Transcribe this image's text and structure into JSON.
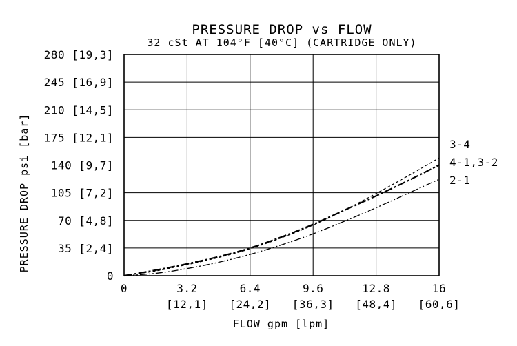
{
  "chart_data": {
    "type": "line",
    "title": "PRESSURE DROP vs FLOW",
    "subtitle": "32 cSt AT 104°F [40°C] (CARTRIDGE ONLY)",
    "xlabel": "FLOW gpm [lpm]",
    "ylabel": "PRESSURE DROP psi [bar]",
    "xlim": [
      0,
      16
    ],
    "ylim": [
      0,
      280
    ],
    "grid": true,
    "x_ticks": [
      {
        "value": 0,
        "label": "0",
        "sub": ""
      },
      {
        "value": 3.2,
        "label": "3.2",
        "sub": "[12,1]"
      },
      {
        "value": 6.4,
        "label": "6.4",
        "sub": "[24,2]"
      },
      {
        "value": 9.6,
        "label": "9.6",
        "sub": "[36,3]"
      },
      {
        "value": 12.8,
        "label": "12.8",
        "sub": "[48,4]"
      },
      {
        "value": 16,
        "label": "16",
        "sub": "[60,6]"
      }
    ],
    "y_ticks": [
      {
        "value": 0,
        "label": "0"
      },
      {
        "value": 35,
        "label": "35 [2,4]"
      },
      {
        "value": 70,
        "label": "70 [4,8]"
      },
      {
        "value": 105,
        "label": "105 [7,2]"
      },
      {
        "value": 140,
        "label": "140 [9,7]"
      },
      {
        "value": 175,
        "label": "175 [12,1]"
      },
      {
        "value": 210,
        "label": "210 [14,5]"
      },
      {
        "value": 245,
        "label": "245 [16,9]"
      },
      {
        "value": 280,
        "label": "280 [19,3]"
      }
    ],
    "series": [
      {
        "name": "3-4",
        "dash": "4,3",
        "width": 1.2,
        "x": [
          0,
          1.6,
          3.2,
          4.8,
          6.4,
          8.0,
          9.6,
          11.2,
          12.8,
          14.4,
          16
        ],
        "y": [
          0,
          6,
          14,
          23,
          34,
          48,
          64,
          83,
          104,
          126,
          149
        ]
      },
      {
        "name": "4-1,3-2",
        "dash": "12,3,3,3",
        "width": 2.2,
        "x": [
          0,
          1.6,
          3.2,
          4.8,
          6.4,
          8.0,
          9.6,
          11.2,
          12.8,
          14.4,
          16
        ],
        "y": [
          0,
          7,
          15,
          24,
          35,
          49,
          65,
          83,
          101,
          120,
          140
        ]
      },
      {
        "name": "2-1",
        "dash": "10,3,2,3,2,3",
        "width": 1.3,
        "x": [
          0,
          1.6,
          3.2,
          4.8,
          6.4,
          8.0,
          9.6,
          11.2,
          12.8,
          14.4,
          16
        ],
        "y": [
          0,
          3,
          9,
          17,
          27,
          39,
          53,
          69,
          86,
          104,
          122
        ]
      }
    ]
  }
}
